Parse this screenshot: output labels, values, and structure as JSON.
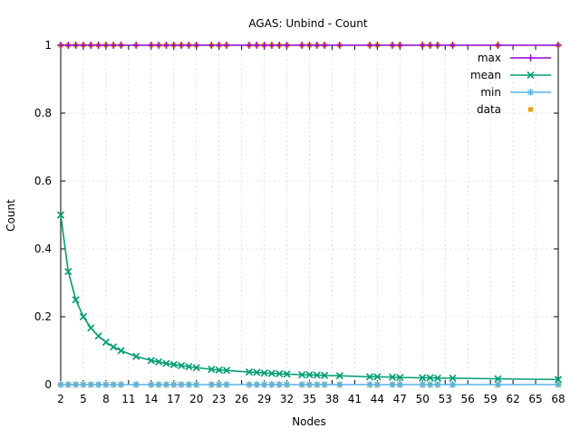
{
  "chart_data": {
    "type": "line",
    "title": "AGAS: Unbind - Count",
    "xlabel": "Nodes",
    "ylabel": "Count",
    "xlim": [
      2,
      68
    ],
    "ylim": [
      0,
      1
    ],
    "x_ticks": [
      2,
      5,
      8,
      11,
      14,
      17,
      20,
      23,
      26,
      29,
      32,
      35,
      38,
      41,
      44,
      47,
      50,
      53,
      56,
      59,
      62,
      65,
      68
    ],
    "y_ticks": [
      0,
      0.2,
      0.4,
      0.6,
      0.8,
      1
    ],
    "y_tick_labels": [
      "0",
      "0.2",
      "0.4",
      "0.6",
      "0.8",
      "1"
    ],
    "grid": true,
    "legend_position": "top-right",
    "x": [
      2,
      3,
      4,
      5,
      6,
      7,
      8,
      9,
      10,
      12,
      14,
      15,
      16,
      17,
      18,
      19,
      20,
      22,
      23,
      24,
      27,
      28,
      29,
      30,
      31,
      32,
      34,
      35,
      36,
      37,
      39,
      43,
      44,
      46,
      47,
      50,
      51,
      52,
      54,
      60,
      68
    ],
    "series": [
      {
        "name": "max",
        "color": "#9400d3",
        "marker": "plus",
        "values": [
          1,
          1,
          1,
          1,
          1,
          1,
          1,
          1,
          1,
          1,
          1,
          1,
          1,
          1,
          1,
          1,
          1,
          1,
          1,
          1,
          1,
          1,
          1,
          1,
          1,
          1,
          1,
          1,
          1,
          1,
          1,
          1,
          1,
          1,
          1,
          1,
          1,
          1,
          1,
          1,
          1
        ]
      },
      {
        "name": "mean",
        "color": "#009e73",
        "marker": "cross",
        "values": [
          0.5,
          0.333,
          0.25,
          0.2,
          0.167,
          0.143,
          0.125,
          0.111,
          0.1,
          0.083,
          0.071,
          0.067,
          0.0625,
          0.059,
          0.056,
          0.053,
          0.05,
          0.045,
          0.043,
          0.042,
          0.037,
          0.036,
          0.034,
          0.033,
          0.032,
          0.031,
          0.029,
          0.029,
          0.028,
          0.027,
          0.026,
          0.023,
          0.023,
          0.022,
          0.021,
          0.02,
          0.02,
          0.019,
          0.019,
          0.017,
          0.015
        ]
      },
      {
        "name": "min",
        "color": "#56b4e9",
        "marker": "star",
        "values": [
          0,
          0,
          0,
          0,
          0,
          0,
          0,
          0,
          0,
          0,
          0,
          0,
          0,
          0,
          0,
          0,
          0,
          0,
          0,
          0,
          0,
          0,
          0,
          0,
          0,
          0,
          0,
          0,
          0,
          0,
          0,
          0,
          0,
          0,
          0,
          0,
          0,
          0,
          0,
          0,
          0
        ]
      },
      {
        "name": "data",
        "color": "#e69f00",
        "marker": "square",
        "points": "scatter at y=0 and y=1 for each node count"
      }
    ]
  }
}
